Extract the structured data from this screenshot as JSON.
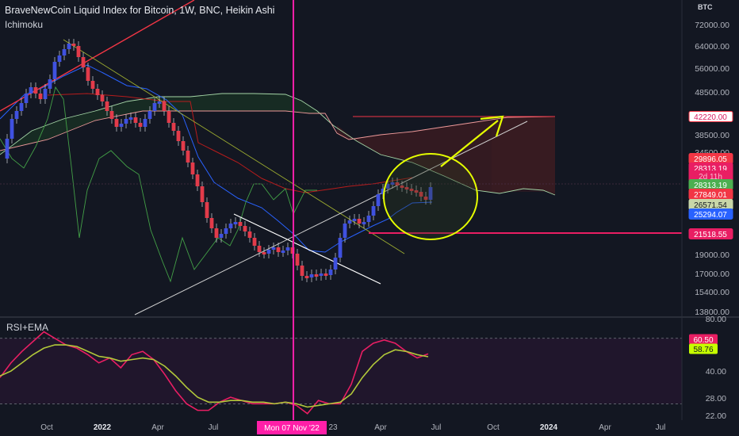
{
  "header": {
    "title": "BraveNewCoin Liquid Index for Bitcoin, 1W, BNC, Heikin Ashi",
    "indicator": "Ichimoku"
  },
  "rsi_panel": {
    "label": "RSI+EMA"
  },
  "price_axis": {
    "currency": "BTC",
    "ticks": [
      "72000.00",
      "64000.00",
      "56000.00",
      "48500.00",
      "38500.00",
      "34500.00",
      "19000.00",
      "17000.00",
      "15400.00",
      "13800.00"
    ],
    "badges": [
      {
        "text": "42220.00",
        "bg": "#ffffff",
        "fg": "#d81b60",
        "border": "#f23645"
      },
      {
        "text": "29896.05",
        "bg": "#f23645",
        "fg": "#ffffff"
      },
      {
        "text": "28313.19",
        "bg": "#e91e63",
        "fg": "#ffffff"
      },
      {
        "text": "2d 11h",
        "bg": "#e91e63",
        "fg": "#f8bbd0"
      },
      {
        "text": "28313.19",
        "bg": "#4caf50",
        "fg": "#ffffff"
      },
      {
        "text": "27849.01",
        "bg": "#f23645",
        "fg": "#ffffff"
      },
      {
        "text": "26571.54",
        "bg": "#c8d6a8",
        "fg": "#131722"
      },
      {
        "text": "25294.07",
        "bg": "#2962ff",
        "fg": "#ffffff"
      },
      {
        "text": "21518.55",
        "bg": "#e91e63",
        "fg": "#ffffff"
      }
    ]
  },
  "rsi_axis": {
    "ticks": [
      "80.00",
      "40.00",
      "28.00",
      "22.00"
    ],
    "badges": [
      {
        "text": "60.50",
        "bg": "#e91e63",
        "fg": "#ffffff"
      },
      {
        "text": "58.76",
        "bg": "#c6ff00",
        "fg": "#131722"
      }
    ]
  },
  "time_axis": {
    "ticks": [
      "Oct",
      "2022",
      "Apr",
      "Jul",
      "23",
      "Apr",
      "Jul",
      "Oct",
      "2024",
      "Apr",
      "Jul"
    ],
    "cursor_label": "Mon 07 Nov '22"
  },
  "colors": {
    "background": "#131722",
    "up": "#3f51e0",
    "down": "#e23b4a",
    "crosshair": "#ff1fa8",
    "tenkan": "#2962ff",
    "kijun": "#b71c1c",
    "chikou": "#43a047",
    "span_a": "#a5d6a7",
    "span_b": "#ef9a9a",
    "rsi": "#e91e63",
    "ema": "#b2c83a",
    "annotation": "#e6ff00"
  },
  "chart_data": [
    {
      "type": "candlestick",
      "title": "BraveNewCoin Liquid Index for Bitcoin, 1W, BNC, Heikin Ashi",
      "y_scale": "log",
      "ylim": [
        13500,
        80000
      ],
      "series_price_points": [
        {
          "x": "Aug 2021",
          "y": 35000
        },
        {
          "x": "Sep 2021",
          "y": 46000
        },
        {
          "x": "Oct 2021",
          "y": 61000
        },
        {
          "x": "Nov 2021",
          "y": 64000
        },
        {
          "x": "Dec 2021",
          "y": 50000
        },
        {
          "x": "Jan 2022",
          "y": 42000
        },
        {
          "x": "Feb 2022",
          "y": 40000
        },
        {
          "x": "Mar 2022",
          "y": 43000
        },
        {
          "x": "Apr 2022",
          "y": 41000
        },
        {
          "x": "May 2022",
          "y": 31000
        },
        {
          "x": "Jun 2022",
          "y": 21000
        },
        {
          "x": "Jul 2022",
          "y": 22000
        },
        {
          "x": "Aug 2022",
          "y": 23500
        },
        {
          "x": "Sep 2022",
          "y": 19500
        },
        {
          "x": "Oct 2022",
          "y": 19800
        },
        {
          "x": "Nov 2022",
          "y": 16500
        },
        {
          "x": "Dec 2022",
          "y": 16900
        },
        {
          "x": "Jan 2023",
          "y": 21000
        },
        {
          "x": "Feb 2023",
          "y": 23500
        },
        {
          "x": "Mar 2023",
          "y": 27000
        },
        {
          "x": "Apr 2023",
          "y": 29000
        },
        {
          "x": "May 2023",
          "y": 27000
        },
        {
          "x": "Jun 2023",
          "y": 28313
        }
      ],
      "levels": [
        42220,
        29896.05,
        28313.19,
        27849.01,
        26571.54,
        25294.07,
        21518.55
      ],
      "crosshair_x": "Mon 07 Nov '22"
    },
    {
      "type": "line",
      "title": "RSI+EMA",
      "ylim": [
        20,
        82
      ],
      "series": [
        {
          "name": "RSI",
          "values": [
            46,
            55,
            62,
            68,
            74,
            70,
            66,
            64,
            60,
            55,
            58,
            52,
            60,
            62,
            57,
            48,
            38,
            30,
            26,
            26,
            31,
            34,
            32,
            30,
            30,
            30,
            31,
            29,
            24,
            32,
            30,
            30,
            42,
            62,
            67,
            69,
            67,
            62,
            58,
            60.5
          ]
        },
        {
          "name": "EMA",
          "values": [
            47,
            50,
            55,
            60,
            64,
            66,
            66,
            65,
            62,
            59,
            58,
            56,
            57,
            58,
            57,
            53,
            47,
            40,
            34,
            31,
            31,
            32,
            32,
            31,
            31,
            30,
            31,
            30,
            28,
            29,
            30,
            31,
            36,
            46,
            54,
            60,
            63,
            62,
            60,
            58.76
          ]
        }
      ]
    }
  ]
}
